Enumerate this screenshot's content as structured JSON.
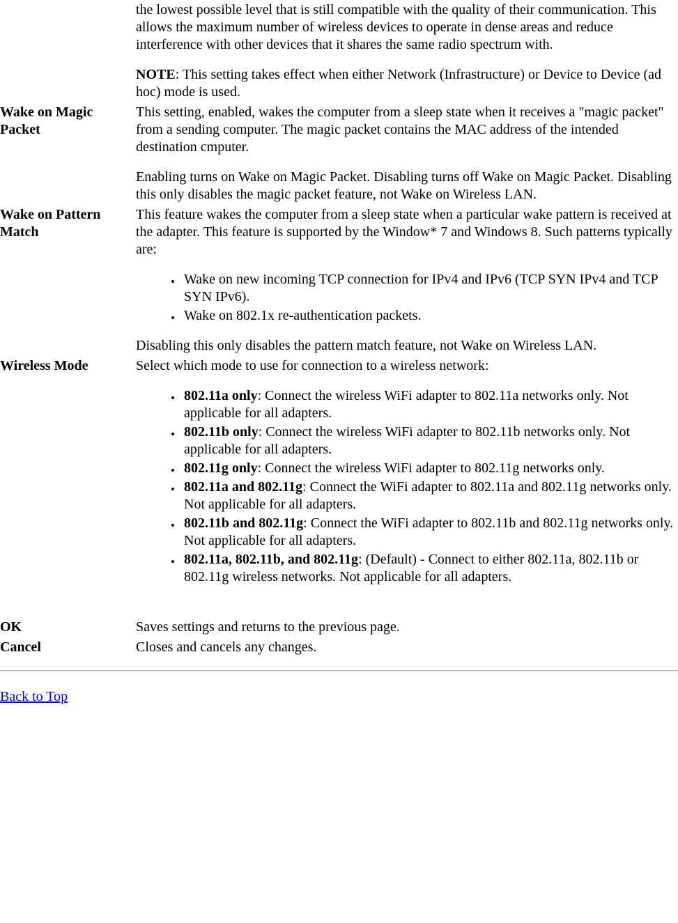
{
  "rows": {
    "transmitPowerCont": {
      "term": "",
      "p1": "the lowest possible level that is still compatible with the quality of their communication. This allows the maximum number of wireless devices to operate in dense areas and reduce interference with other devices that it shares the same radio spectrum with.",
      "note_label": "NOTE",
      "note_text": ": This setting takes effect when either Network (Infrastructure) or Device to Device (ad hoc) mode is used."
    },
    "wakeMagic": {
      "term": "Wake on Magic Packet",
      "p1": "This setting, enabled, wakes the computer from a sleep state when it receives a \"magic packet\" from a sending computer. The magic packet contains the MAC address of the intended destination cmputer.",
      "p2": "Enabling turns on Wake on Magic Packet. Disabling turns off Wake on Magic Packet. Disabling this only disables the magic packet feature, not Wake on Wireless LAN."
    },
    "wakePattern": {
      "term": "Wake on Pattern Match",
      "p1": "This feature wakes the computer from a sleep state when a particular wake pattern is received at the adapter. This feature is supported by the Window* 7 and Windows 8. Such patterns typically are:",
      "li1": "Wake on new incoming TCP connection for IPv4 and IPv6 (TCP SYN IPv4 and TCP SYN IPv6).",
      "li2": "Wake on 802.1x re-authentication packets.",
      "p2": "Disabling this only disables the pattern match feature, not Wake on Wireless LAN."
    },
    "wirelessMode": {
      "term": "Wireless Mode",
      "p1": "Select which mode to use for connection to a wireless network:",
      "li1b": "802.11a only",
      "li1t": ": Connect the wireless WiFi adapter to 802.11a networks only. Not applicable for all adapters.",
      "li2b": "802.11b only",
      "li2t": ": Connect the wireless WiFi adapter to 802.11b networks only. Not applicable for all adapters.",
      "li3b": "802.11g only",
      "li3t": ": Connect the wireless WiFi adapter to 802.11g networks only.",
      "li4b": "802.11a and 802.11g",
      "li4t": ": Connect the WiFi adapter to 802.11a and 802.11g networks only. Not applicable for all adapters.",
      "li5b": "802.11b and 802.11g",
      "li5t": ": Connect the WiFi adapter to 802.11b and 802.11g networks only. Not applicable for all adapters.",
      "li6b": "802.11a, 802.11b, and 802.11g",
      "li6t": ": (Default) - Connect to either 802.11a, 802.11b or 802.11g wireless networks. Not applicable for all adapters."
    },
    "ok": {
      "term": "OK",
      "desc": "Saves settings and returns to the previous page."
    },
    "cancel": {
      "term": "Cancel",
      "desc": "Closes and cancels any changes."
    }
  },
  "backToTop": "Back to Top"
}
